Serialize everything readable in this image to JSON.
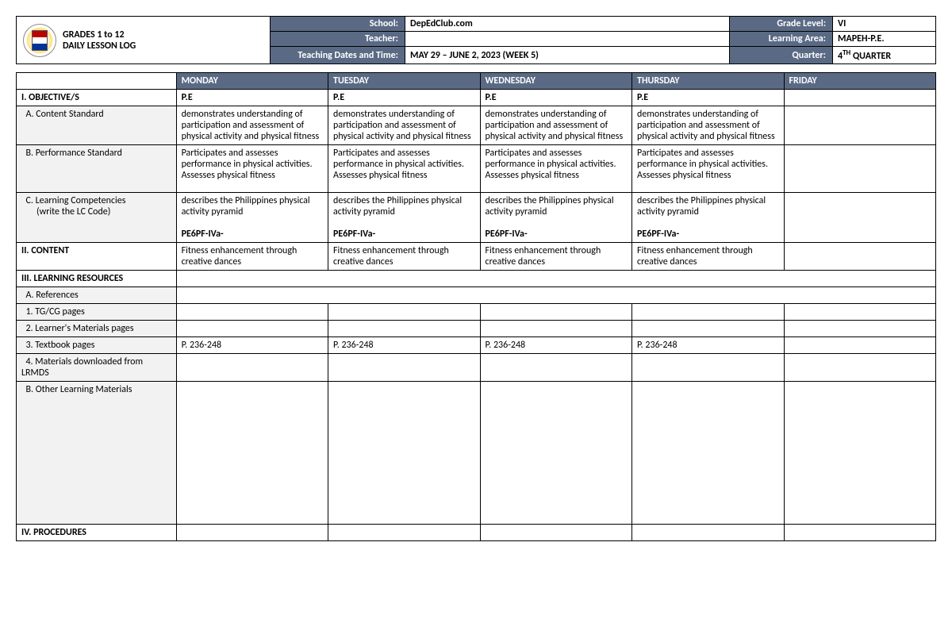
{
  "header": {
    "title_line1": "GRADES 1 to 12",
    "title_line2": "DAILY LESSON LOG",
    "labels": {
      "school": "School:",
      "teacher": "Teacher:",
      "dates": "Teaching Dates and Time:",
      "grade": "Grade Level:",
      "area": "Learning Area:",
      "quarter": "Quarter:"
    },
    "values": {
      "school": "DepEdClub.com",
      "teacher": "",
      "dates": "MAY 29 – JUNE 2, 2023 (WEEK 5)",
      "grade": "VI",
      "area": "MAPEH-P.E.",
      "quarter_pre": "4",
      "quarter_sup": "TH",
      "quarter_post": " QUARTER"
    }
  },
  "days": [
    "MONDAY",
    "TUESDAY",
    "WEDNESDAY",
    "THURSDAY",
    "FRIDAY"
  ],
  "subject_row": [
    "P.E",
    "P.E",
    "P.E",
    "P.E",
    ""
  ],
  "sections": {
    "objectives": "I. OBJECTIVE/S",
    "content_std": "A.    Content Standard",
    "perf_std": "B.    Performance Standard",
    "learn_comp": "C.    Learning Competencies",
    "lc_code": "(write the LC Code)",
    "content": "II. CONTENT",
    "resources": "III. LEARNING RESOURCES",
    "refs": "A.    References",
    "tg": "1.   TG/CG pages",
    "lm": "2.   Learner's Materials pages",
    "tb": "3.   Textbook pages",
    "lrmds": "4.   Materials downloaded from LRMDS",
    "other": "B.    Other Learning Materials",
    "procedures": "IV. PROCEDURES"
  },
  "rows": {
    "content_std": [
      "demonstrates understanding of participation and assessment of physical activity and physical fitness",
      "demonstrates understanding of participation and assessment of physical activity and physical fitness",
      "demonstrates understanding of participation and assessment of physical activity and physical fitness",
      "demonstrates understanding of participation and assessment of physical activity and physical fitness",
      ""
    ],
    "perf_std": [
      "Participates and assesses performance in physical activities.\nAssesses physical fitness",
      "Participates and assesses performance in physical activities.\nAssesses physical fitness",
      "Participates and assesses performance in physical activities.\nAssesses physical fitness",
      "Participates and assesses performance in physical activities.\nAssesses physical fitness",
      ""
    ],
    "learn_comp_top": [
      "describes the Philippines physical activity pyramid",
      "describes the Philippines physical activity pyramid",
      "describes the Philippines physical activity pyramid",
      "describes the Philippines physical activity pyramid",
      ""
    ],
    "learn_comp_code": [
      "PE6PF-IVa-",
      "PE6PF-IVa-",
      "PE6PF-IVa-",
      "PE6PF-IVa-",
      ""
    ],
    "content": [
      "Fitness enhancement through creative dances",
      "Fitness enhancement through creative dances",
      "Fitness enhancement through creative dances",
      "Fitness enhancement through creative dances",
      ""
    ],
    "textbook": [
      "P. 236-248",
      "P. 236-248",
      "P. 236-248",
      "P. 236-248",
      ""
    ]
  },
  "colors": {
    "header_bg": "#5a6a84",
    "header_fg": "#ffffff",
    "sub_bg": "#f2f2f2",
    "border": "#000000"
  }
}
